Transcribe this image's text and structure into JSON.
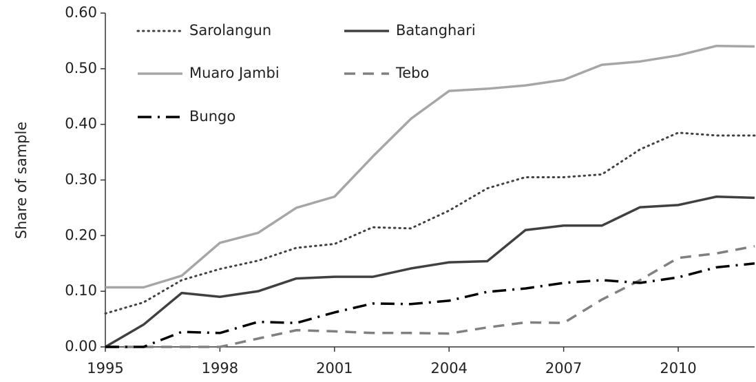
{
  "chart_data": {
    "type": "line",
    "y_label": "Share of sample",
    "x": [
      1995,
      1996,
      1997,
      1998,
      1999,
      2000,
      2001,
      2002,
      2003,
      2004,
      2005,
      2006,
      2007,
      2008,
      2009,
      2010,
      2011,
      2012
    ],
    "series": [
      {
        "name": "Sarolangun",
        "color": "#404040",
        "values": [
          0.06,
          0.08,
          0.12,
          0.14,
          0.155,
          0.178,
          0.185,
          0.215,
          0.213,
          0.245,
          0.285,
          0.305,
          0.305,
          0.31,
          0.355,
          0.385,
          0.38,
          0.38
        ]
      },
      {
        "name": "Batanghari",
        "color": "#404040",
        "values": [
          0,
          0.04,
          0.097,
          0.09,
          0.1,
          0.123,
          0.126,
          0.126,
          0.141,
          0.152,
          0.154,
          0.21,
          0.218,
          0.218,
          0.251,
          0.255,
          0.27,
          0.268
        ]
      },
      {
        "name": "Muaro Jambi",
        "color": "#a6a6a6",
        "values": [
          0.107,
          0.107,
          0.128,
          0.187,
          0.205,
          0.25,
          0.27,
          0.342,
          0.41,
          0.46,
          0.464,
          0.47,
          0.48,
          0.507,
          0.513,
          0.524,
          0.541,
          0.54
        ]
      },
      {
        "name": "Tebo",
        "color": "#808080",
        "values": [
          0,
          0,
          0,
          0,
          0.015,
          0.03,
          0.028,
          0.025,
          0.025,
          0.024,
          0.035,
          0.044,
          0.043,
          0.085,
          0.12,
          0.16,
          0.168,
          0.181
        ]
      },
      {
        "name": "Bungo",
        "color": "#000000",
        "values": [
          0,
          0,
          0.027,
          0.025,
          0.045,
          0.043,
          0.062,
          0.078,
          0.077,
          0.083,
          0.099,
          0.105,
          0.115,
          0.12,
          0.115,
          0.125,
          0.143,
          0.15
        ]
      }
    ],
    "xlim": [
      1995,
      2012
    ],
    "xticks": [
      1995,
      1998,
      2001,
      2004,
      2007,
      2010
    ],
    "ylim": [
      0,
      0.6
    ],
    "yticks": [
      {
        "value": 0,
        "label": "0.00"
      },
      {
        "value": 0.1,
        "label": "0.10"
      },
      {
        "value": 0.2,
        "label": "0.20"
      },
      {
        "value": 0.3,
        "label": "0.30"
      },
      {
        "value": 0.4,
        "label": "0.40"
      },
      {
        "value": 0.5,
        "label": "0.50"
      },
      {
        "value": 0.6,
        "label": "0.60"
      }
    ],
    "grid": false
  }
}
